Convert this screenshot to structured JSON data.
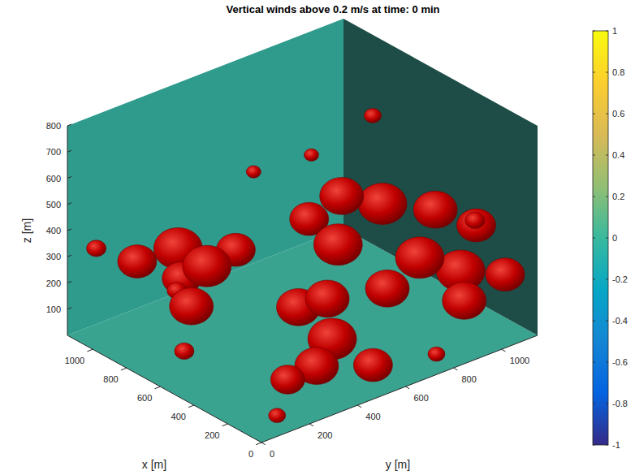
{
  "chart_data": {
    "type": "isosurface",
    "title": "Vertical winds above 0.2 m/s at time: 0 min",
    "x_label": "x [m]",
    "y_label": "y [m]",
    "z_label": "z [m]",
    "xlim": [
      0,
      1150
    ],
    "ylim": [
      0,
      1150
    ],
    "zlim": [
      0,
      800
    ],
    "xticks": [
      0,
      200,
      400,
      600,
      800,
      1000
    ],
    "yticks": [
      0,
      200,
      400,
      600,
      800,
      1000
    ],
    "zticks": [
      100,
      200,
      300,
      400,
      500,
      600,
      700,
      800
    ],
    "color": "#c00000",
    "colorbar": {
      "lim": [
        -1,
        1
      ],
      "ticks": [
        -1,
        -0.8,
        -0.6,
        -0.4,
        -0.2,
        0,
        0.2,
        0.4,
        0.6,
        0.8,
        1
      ]
    },
    "regions": [
      {
        "x": 550,
        "y": 850,
        "z": 750,
        "r": 35
      },
      {
        "x": 700,
        "y": 700,
        "z": 600,
        "r": 30
      },
      {
        "x": 900,
        "y": 600,
        "z": 500,
        "r": 30
      },
      {
        "x": 150,
        "y": 1000,
        "z": 420,
        "r": 80
      },
      {
        "x": 250,
        "y": 900,
        "z": 480,
        "r": 90
      },
      {
        "x": 350,
        "y": 750,
        "z": 520,
        "r": 100
      },
      {
        "x": 450,
        "y": 650,
        "z": 550,
        "r": 90
      },
      {
        "x": 500,
        "y": 550,
        "z": 480,
        "r": 80
      },
      {
        "x": 300,
        "y": 1100,
        "z": 350,
        "r": 40
      },
      {
        "x": 400,
        "y": 600,
        "z": 400,
        "r": 100
      },
      {
        "x": 1050,
        "y": 50,
        "z": 350,
        "r": 40
      },
      {
        "x": 950,
        "y": 150,
        "z": 300,
        "r": 80
      },
      {
        "x": 850,
        "y": 250,
        "z": 350,
        "r": 100
      },
      {
        "x": 650,
        "y": 350,
        "z": 380,
        "r": 80
      },
      {
        "x": 900,
        "y": 300,
        "z": 200,
        "r": 80
      },
      {
        "x": 750,
        "y": 300,
        "z": 300,
        "r": 100
      },
      {
        "x": 1000,
        "y": 350,
        "z": 100,
        "r": 40
      },
      {
        "x": 700,
        "y": 200,
        "z": 200,
        "r": 90
      },
      {
        "x": 50,
        "y": 1050,
        "z": 250,
        "r": 80
      },
      {
        "x": 100,
        "y": 900,
        "z": 300,
        "r": 100
      },
      {
        "x": 200,
        "y": 800,
        "z": 350,
        "r": 100
      },
      {
        "x": 150,
        "y": 950,
        "z": 150,
        "r": 90
      },
      {
        "x": 250,
        "y": 700,
        "z": 250,
        "r": 90
      },
      {
        "x": 30,
        "y": 750,
        "z": 60,
        "r": 35
      },
      {
        "x": 600,
        "y": 100,
        "z": 100,
        "r": 40
      },
      {
        "x": 350,
        "y": 400,
        "z": 250,
        "r": 90
      },
      {
        "x": 250,
        "y": 450,
        "z": 300,
        "r": 90
      },
      {
        "x": 150,
        "y": 400,
        "z": 200,
        "r": 100
      },
      {
        "x": 50,
        "y": 500,
        "z": 100,
        "r": 80
      },
      {
        "x": 100,
        "y": 300,
        "z": 150,
        "r": 90
      },
      {
        "x": 200,
        "y": 250,
        "z": 80,
        "r": 70
      },
      {
        "x": 50,
        "y": 100,
        "z": 50,
        "r": 35
      }
    ]
  }
}
